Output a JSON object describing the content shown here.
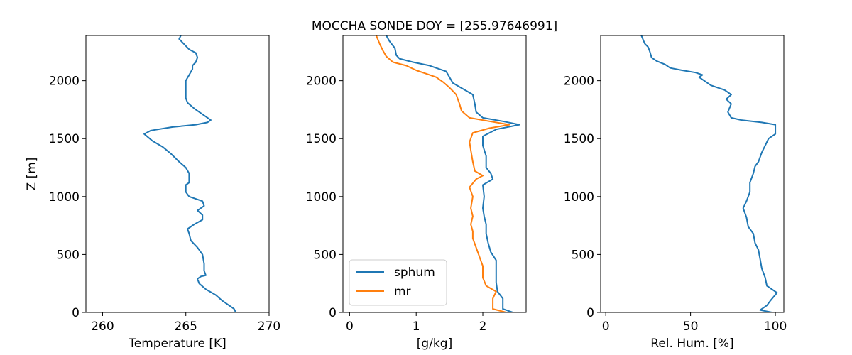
{
  "figure_title": "MOCCHA SONDE DOY = [255.97646991]",
  "chart_data": [
    {
      "type": "line",
      "title": "",
      "xlabel": "Temperature [K]",
      "ylabel": "Z [m]",
      "xlim": [
        259,
        270
      ],
      "ylim": [
        0,
        2390
      ],
      "xticks": [
        260,
        265,
        270
      ],
      "yticks": [
        0,
        500,
        1000,
        1500,
        2000
      ],
      "grid": false,
      "legend": null,
      "series": [
        {
          "color": "#1f77b4",
          "points": [
            [
              268.0,
              0
            ],
            [
              267.9,
              30
            ],
            [
              267.6,
              60
            ],
            [
              267.2,
              100
            ],
            [
              266.8,
              150
            ],
            [
              266.2,
              200
            ],
            [
              265.8,
              250
            ],
            [
              265.7,
              290
            ],
            [
              265.9,
              310
            ],
            [
              266.2,
              320
            ],
            [
              266.1,
              360
            ],
            [
              266.1,
              420
            ],
            [
              266.0,
              500
            ],
            [
              265.7,
              560
            ],
            [
              265.3,
              620
            ],
            [
              265.2,
              680
            ],
            [
              265.1,
              720
            ],
            [
              265.5,
              760
            ],
            [
              266.0,
              800
            ],
            [
              266.0,
              840
            ],
            [
              265.7,
              880
            ],
            [
              266.1,
              920
            ],
            [
              266.0,
              960
            ],
            [
              265.2,
              1000
            ],
            [
              265.0,
              1040
            ],
            [
              265.0,
              1100
            ],
            [
              265.2,
              1120
            ],
            [
              265.2,
              1200
            ],
            [
              265.0,
              1250
            ],
            [
              264.6,
              1300
            ],
            [
              264.1,
              1370
            ],
            [
              263.6,
              1430
            ],
            [
              263.0,
              1480
            ],
            [
              262.5,
              1540
            ],
            [
              262.9,
              1570
            ],
            [
              264.2,
              1600
            ],
            [
              265.6,
              1620
            ],
            [
              266.3,
              1640
            ],
            [
              266.5,
              1660
            ],
            [
              266.1,
              1700
            ],
            [
              265.5,
              1760
            ],
            [
              265.1,
              1810
            ],
            [
              265.0,
              1850
            ],
            [
              265.0,
              1950
            ],
            [
              265.0,
              2000
            ],
            [
              265.2,
              2050
            ],
            [
              265.4,
              2100
            ],
            [
              265.4,
              2130
            ],
            [
              265.6,
              2160
            ],
            [
              265.7,
              2200
            ],
            [
              265.6,
              2240
            ],
            [
              265.2,
              2270
            ],
            [
              265.0,
              2300
            ],
            [
              264.8,
              2330
            ],
            [
              264.6,
              2360
            ],
            [
              264.7,
              2390
            ]
          ]
        }
      ]
    },
    {
      "type": "line",
      "title": "",
      "xlabel": "[g/kg]",
      "ylabel": "",
      "xlim": [
        -0.1,
        2.65
      ],
      "ylim": [
        0,
        2390
      ],
      "xticks": [
        0,
        1,
        2
      ],
      "yticks": [
        0,
        500,
        1000,
        1500,
        2000
      ],
      "grid": false,
      "legend": "lower left",
      "series": [
        {
          "name": "sphum",
          "color": "#1f77b4",
          "points": [
            [
              2.45,
              0
            ],
            [
              2.3,
              30
            ],
            [
              2.3,
              120
            ],
            [
              2.22,
              180
            ],
            [
              2.2,
              260
            ],
            [
              2.2,
              350
            ],
            [
              2.2,
              450
            ],
            [
              2.12,
              520
            ],
            [
              2.08,
              600
            ],
            [
              2.05,
              680
            ],
            [
              2.05,
              760
            ],
            [
              2.02,
              830
            ],
            [
              2.0,
              900
            ],
            [
              2.02,
              1000
            ],
            [
              2.0,
              1100
            ],
            [
              2.15,
              1150
            ],
            [
              2.12,
              1200
            ],
            [
              2.05,
              1250
            ],
            [
              2.05,
              1350
            ],
            [
              2.0,
              1440
            ],
            [
              2.0,
              1520
            ],
            [
              2.2,
              1580
            ],
            [
              2.55,
              1620
            ],
            [
              2.3,
              1650
            ],
            [
              2.0,
              1680
            ],
            [
              1.9,
              1730
            ],
            [
              1.88,
              1800
            ],
            [
              1.85,
              1880
            ],
            [
              1.7,
              1930
            ],
            [
              1.55,
              1980
            ],
            [
              1.5,
              2030
            ],
            [
              1.45,
              2080
            ],
            [
              1.35,
              2100
            ],
            [
              1.2,
              2130
            ],
            [
              0.95,
              2160
            ],
            [
              0.75,
              2190
            ],
            [
              0.7,
              2220
            ],
            [
              0.68,
              2280
            ],
            [
              0.6,
              2340
            ],
            [
              0.55,
              2390
            ]
          ]
        },
        {
          "name": "mr",
          "color": "#ff7f0e",
          "points": [
            [
              2.35,
              0
            ],
            [
              2.15,
              30
            ],
            [
              2.15,
              120
            ],
            [
              2.2,
              180
            ],
            [
              2.05,
              230
            ],
            [
              2.0,
              300
            ],
            [
              2.0,
              400
            ],
            [
              1.95,
              480
            ],
            [
              1.9,
              560
            ],
            [
              1.85,
              640
            ],
            [
              1.85,
              700
            ],
            [
              1.82,
              760
            ],
            [
              1.85,
              830
            ],
            [
              1.82,
              900
            ],
            [
              1.85,
              1000
            ],
            [
              1.8,
              1080
            ],
            [
              1.9,
              1150
            ],
            [
              2.0,
              1180
            ],
            [
              1.88,
              1220
            ],
            [
              1.85,
              1300
            ],
            [
              1.82,
              1400
            ],
            [
              1.8,
              1470
            ],
            [
              1.85,
              1550
            ],
            [
              2.1,
              1590
            ],
            [
              2.4,
              1620
            ],
            [
              2.1,
              1650
            ],
            [
              1.8,
              1680
            ],
            [
              1.68,
              1740
            ],
            [
              1.65,
              1800
            ],
            [
              1.6,
              1880
            ],
            [
              1.5,
              1940
            ],
            [
              1.4,
              1990
            ],
            [
              1.3,
              2030
            ],
            [
              1.15,
              2060
            ],
            [
              1.0,
              2090
            ],
            [
              0.85,
              2130
            ],
            [
              0.65,
              2160
            ],
            [
              0.55,
              2210
            ],
            [
              0.5,
              2260
            ],
            [
              0.45,
              2320
            ],
            [
              0.4,
              2390
            ]
          ]
        }
      ]
    },
    {
      "type": "line",
      "title": "",
      "xlabel": "Rel. Hum. [%]",
      "ylabel": "",
      "xlim": [
        -3,
        105
      ],
      "ylim": [
        0,
        2390
      ],
      "xticks": [
        0,
        50,
        100
      ],
      "yticks": [
        0,
        500,
        1000,
        1500,
        2000
      ],
      "grid": false,
      "legend": null,
      "series": [
        {
          "color": "#1f77b4",
          "points": [
            [
              98,
              0
            ],
            [
              91,
              20
            ],
            [
              95,
              60
            ],
            [
              97,
              100
            ],
            [
              101,
              170
            ],
            [
              95,
              230
            ],
            [
              94,
              300
            ],
            [
              92,
              380
            ],
            [
              91,
              460
            ],
            [
              90,
              540
            ],
            [
              88,
              600
            ],
            [
              87,
              680
            ],
            [
              84,
              740
            ],
            [
              83,
              820
            ],
            [
              81,
              900
            ],
            [
              83,
              960
            ],
            [
              85,
              1040
            ],
            [
              85,
              1120
            ],
            [
              87,
              1200
            ],
            [
              88,
              1260
            ],
            [
              90,
              1300
            ],
            [
              92,
              1380
            ],
            [
              94,
              1440
            ],
            [
              96,
              1500
            ],
            [
              100,
              1540
            ],
            [
              100,
              1620
            ],
            [
              92,
              1640
            ],
            [
              80,
              1660
            ],
            [
              74,
              1680
            ],
            [
              72,
              1730
            ],
            [
              74,
              1800
            ],
            [
              71,
              1840
            ],
            [
              74,
              1880
            ],
            [
              70,
              1920
            ],
            [
              62,
              1960
            ],
            [
              58,
              2000
            ],
            [
              55,
              2030
            ],
            [
              57,
              2050
            ],
            [
              53,
              2070
            ],
            [
              45,
              2090
            ],
            [
              38,
              2110
            ],
            [
              35,
              2140
            ],
            [
              30,
              2170
            ],
            [
              27,
              2200
            ],
            [
              26,
              2250
            ],
            [
              25,
              2290
            ],
            [
              23,
              2320
            ],
            [
              21,
              2390
            ]
          ]
        }
      ]
    }
  ]
}
